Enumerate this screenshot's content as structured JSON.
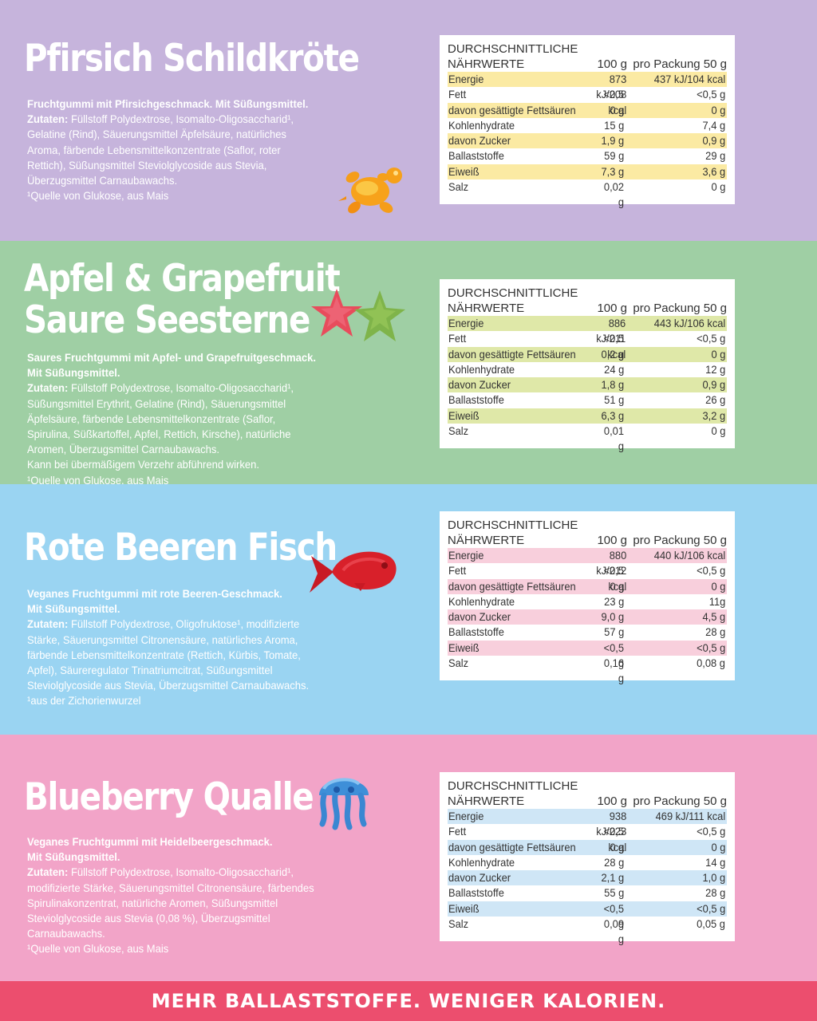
{
  "colors": {
    "peach_bg": "#c6b4dc",
    "apple_bg": "#9fcfa4",
    "fish_bg": "#9ad4f2",
    "jelly_bg": "#f2a4c8",
    "footer_bg": "#ec4e6e",
    "peach_row": "#fbeaa3",
    "apple_row": "#dfe8a8",
    "fish_row": "#f8cfdc",
    "jelly_row": "#cfe6f6"
  },
  "products": [
    {
      "title_lines": [
        "Pfirsich Schildkröte"
      ],
      "desc": {
        "intro": [
          "Fruchtgummi mit Pfirsichgeschmack. Mit Süßungsmittel."
        ],
        "ingredients_label": "Zutaten:",
        "ingredients_lines": [
          " Füllstoff Polydextrose, Isomalto-Oligosaccharid¹,",
          "Gelatine (Rind), Säuerungsmittel Äpfelsäure, natürliches",
          "Aroma, färbende Lebensmittelkonzentrate (Saflor, roter",
          "Rettich), Süßungsmittel Steviolglycoside aus Stevia,",
          "Überzugsmittel Carnaubawachs."
        ],
        "extra_lines": [],
        "footnote": "¹Quelle von Glukose, aus Mais"
      },
      "candy_icon": "turtle-gummy-icon",
      "nutrition": {
        "header1": "DURCHSCHNITTLICHE",
        "header2": "NÄHRWERTE",
        "col_100g": "100 g",
        "col_pack": "pro Packung 50 g",
        "rows": [
          {
            "label": "Energie",
            "per100": "873 kJ/208 kcal",
            "pack": "437 kJ/104 kcal"
          },
          {
            "label": "Fett",
            "per100": "<0,5 g",
            "pack": "<0,5 g"
          },
          {
            "label": "davon gesättigte Fettsäuren",
            "per100": "0 g",
            "pack": "0 g"
          },
          {
            "label": "Kohlenhydrate",
            "per100": "15 g",
            "pack": "7,4 g"
          },
          {
            "label": "davon Zucker",
            "per100": "1,9 g",
            "pack": "0,9 g"
          },
          {
            "label": "Ballaststoffe",
            "per100": "59 g",
            "pack": "29 g"
          },
          {
            "label": "Eiweiß",
            "per100": "7,3 g",
            "pack": "3,6 g"
          },
          {
            "label": "Salz",
            "per100": "0,02 g",
            "pack": "0 g"
          }
        ]
      }
    },
    {
      "title_lines": [
        "Apfel & Grapefruit",
        "Saure Seesterne"
      ],
      "desc": {
        "intro": [
          "Saures Fruchtgummi mit Apfel- und Grapefruitgeschmack.",
          "Mit Süßungsmittel."
        ],
        "ingredients_label": "Zutaten:",
        "ingredients_lines": [
          " Füllstoff Polydextrose, Isomalto-Oligosaccharid¹,",
          "Süßungsmittel Erythrit, Gelatine (Rind), Säuerungsmittel",
          "Äpfelsäure, färbende Lebensmittelkonzentrate (Saflor,",
          "Spirulina, Süßkartoffel, Apfel, Rettich, Kirsche), natürliche",
          "Aromen, Überzugsmittel Carnaubawachs."
        ],
        "extra_lines": [
          "Kann bei übermäßigem Verzehr abführend wirken."
        ],
        "footnote": "¹Quelle von Glukose, aus Mais"
      },
      "candy_icon": "starfish-gummy-icon",
      "nutrition": {
        "header1": "DURCHSCHNITTLICHE",
        "header2": "NÄHRWERTE",
        "col_100g": "100 g",
        "col_pack": "pro Packung 50 g",
        "rows": [
          {
            "label": "Energie",
            "per100": "886 kJ/211 kcal",
            "pack": "443 kJ/106 kcal"
          },
          {
            "label": "Fett",
            "per100": "<0,5 g",
            "pack": "<0,5 g"
          },
          {
            "label": "davon gesättigte Fettsäuren",
            "per100": "0,2 g",
            "pack": "0 g"
          },
          {
            "label": "Kohlenhydrate",
            "per100": "24 g",
            "pack": "12 g"
          },
          {
            "label": "davon Zucker",
            "per100": "1,8 g",
            "pack": "0,9 g"
          },
          {
            "label": "Ballaststoffe",
            "per100": "51 g",
            "pack": "26 g"
          },
          {
            "label": "Eiweiß",
            "per100": "6,3 g",
            "pack": "3,2 g"
          },
          {
            "label": "Salz",
            "per100": "0,01 g",
            "pack": "0 g"
          }
        ]
      }
    },
    {
      "title_lines": [
        "Rote Beeren Fisch"
      ],
      "desc": {
        "intro": [
          "Veganes Fruchtgummi mit rote Beeren-Geschmack.",
          "Mit Süßungsmittel."
        ],
        "ingredients_label": "Zutaten:",
        "ingredients_lines": [
          " Füllstoff Polydextrose, Oligofruktose¹, modifizierte",
          "Stärke, Säuerungsmittel Citronensäure, natürliches Aroma,",
          "färbende Lebensmittelkonzentrate (Rettich, Kürbis, Tomate,",
          "Apfel), Säureregulator Trinatriumcitrat, Süßungsmittel",
          "Steviolglycoside aus Stevia, Überzugsmittel Carnaubawachs."
        ],
        "extra_lines": [],
        "footnote": "¹aus der Zichorienwurzel"
      },
      "candy_icon": "fish-gummy-icon",
      "nutrition": {
        "header1": "DURCHSCHNITTLICHE",
        "header2": "NÄHRWERTE",
        "col_100g": "100 g",
        "col_pack": "pro Packung 50 g",
        "rows": [
          {
            "label": "Energie",
            "per100": "880 kJ/212 kcal",
            "pack": "440 kJ/106 kcal"
          },
          {
            "label": "Fett",
            "per100": "<0,5 g",
            "pack": "<0,5 g"
          },
          {
            "label": "davon gesättigte Fettsäuren",
            "per100": "0 g",
            "pack": "0 g"
          },
          {
            "label": "Kohlenhydrate",
            "per100": "23 g",
            "pack": "11g"
          },
          {
            "label": "davon Zucker",
            "per100": "9,0 g",
            "pack": "4,5 g"
          },
          {
            "label": "Ballaststoffe",
            "per100": "57 g",
            "pack": "28 g"
          },
          {
            "label": "Eiweiß",
            "per100": "<0,5 g",
            "pack": "<0,5 g"
          },
          {
            "label": "Salz",
            "per100": "0,16 g",
            "pack": "0,08 g"
          }
        ]
      }
    },
    {
      "title_lines": [
        "Blueberry Qualle"
      ],
      "desc": {
        "intro": [
          "Veganes Fruchtgummi mit Heidelbeergeschmack.",
          "Mit Süßungsmittel."
        ],
        "ingredients_label": "Zutaten:",
        "ingredients_lines": [
          " Füllstoff Polydextrose, Isomalto-Oligosaccharid¹,",
          "modifizierte Stärke, Säuerungsmittel Citronensäure, färbendes",
          "Spirulinakonzentrat, natürliche Aromen, Süßungsmittel",
          "Steviolglycoside aus Stevia (0,08 %), Überzugsmittel",
          "Carnaubawachs."
        ],
        "extra_lines": [],
        "footnote": "¹Quelle von Glukose, aus Mais"
      },
      "candy_icon": "jellyfish-gummy-icon",
      "nutrition": {
        "header1": "DURCHSCHNITTLICHE",
        "header2": "NÄHRWERTE",
        "col_100g": "100 g",
        "col_pack": "pro Packung 50 g",
        "rows": [
          {
            "label": "Energie",
            "per100": "938 kJ/223 kcal",
            "pack": "469 kJ/111 kcal"
          },
          {
            "label": "Fett",
            "per100": "<0,5 g",
            "pack": "<0,5 g"
          },
          {
            "label": "davon gesättigte Fettsäuren",
            "per100": "0 g",
            "pack": "0 g"
          },
          {
            "label": "Kohlenhydrate",
            "per100": "28 g",
            "pack": "14 g"
          },
          {
            "label": "davon Zucker",
            "per100": "2,1 g",
            "pack": "1,0 g"
          },
          {
            "label": "Ballaststoffe",
            "per100": "55 g",
            "pack": "28 g"
          },
          {
            "label": "Eiweiß",
            "per100": "<0,5 g",
            "pack": "<0,5 g"
          },
          {
            "label": "Salz",
            "per100": "0,09 g",
            "pack": "0,05 g"
          }
        ]
      }
    }
  ],
  "footer": "MEHR BALLASTSTOFFE. WENIGER KALORIEN."
}
